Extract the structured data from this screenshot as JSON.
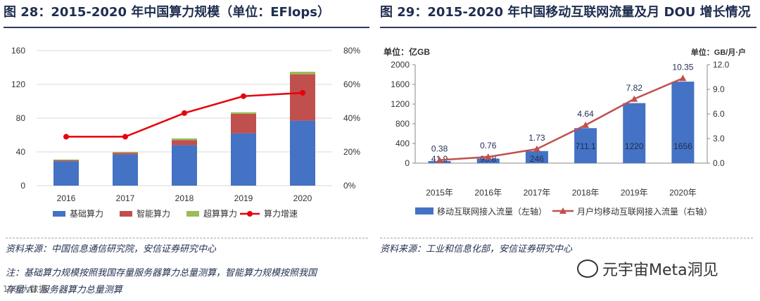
{
  "left_chart": {
    "title": "图 28：2015-2020 年中国算力规模（单位：EFlops）",
    "source": "资料来源：中国信息通信研究院，安信证券研究中心",
    "note_line1": "注：基础算力规模按照我国存量服务器算力总量测算，智能算力规模按照我国",
    "note_line2": "存量 AI 服务器算力总量测算"
  },
  "right_chart": {
    "title": "图 29：2015-2020 年中国移动互联网流量及月 DOU 增长情况",
    "source": "资料来源：工业和信息化部，安信证券研究中心",
    "unit_left": "单位：亿GB",
    "unit_right": "单位：GB/月·户"
  },
  "watermark": {
    "text": "元宇宙Meta洞见",
    "logo_text": "199 大数据"
  },
  "colors": {
    "blue": "#4472c4",
    "red": "#c0504d",
    "green": "#9bbb59",
    "line": "#e8000b",
    "dou": "#c0504d"
  },
  "chart_data": [
    {
      "type": "bar",
      "stacked": true,
      "title": "2015-2020 年中国算力规模（单位：EFlops）",
      "categories": [
        "2016",
        "2017",
        "2018",
        "2019",
        "2020"
      ],
      "series": [
        {
          "name": "基础算力",
          "axis": "left",
          "values": [
            29,
            37,
            48,
            62,
            77
          ]
        },
        {
          "name": "智能算力",
          "axis": "left",
          "values": [
            1,
            2,
            6,
            23,
            55
          ]
        },
        {
          "name": "超算算力",
          "axis": "left",
          "values": [
            1,
            1,
            2,
            2,
            3
          ]
        },
        {
          "name": "算力增速",
          "type": "line",
          "axis": "right",
          "values": [
            0.29,
            0.29,
            0.43,
            0.53,
            0.55
          ]
        }
      ],
      "yleft": {
        "min": 0,
        "max": 160,
        "ticks": [
          0,
          40,
          80,
          120,
          160
        ],
        "tick_labels": [
          "0",
          "40",
          "80",
          "120",
          "160"
        ]
      },
      "yright": {
        "min": 0,
        "max": 0.8,
        "ticks": [
          0,
          0.2,
          0.4,
          0.6,
          0.8
        ],
        "tick_labels": [
          "0%",
          "20%",
          "40%",
          "60%",
          "80%"
        ]
      },
      "legend_position": "bottom"
    },
    {
      "type": "bar",
      "title": "2015-2020 年中国移动互联网流量及月 DOU 增长情况",
      "categories": [
        "2015年",
        "2016年",
        "2017年",
        "2018年",
        "2019年",
        "2020年"
      ],
      "series": [
        {
          "name": "移动互联网接入流量（左轴）",
          "axis": "left",
          "values": [
            41.9,
            93.8,
            246,
            711.1,
            1220,
            1656
          ],
          "labels": [
            "41.9",
            "93.8",
            "246",
            "711.1",
            "1220",
            "1656"
          ]
        },
        {
          "name": "月户均移动互联网接入流量（右轴）",
          "type": "line",
          "axis": "right",
          "values": [
            0.38,
            0.76,
            1.73,
            4.64,
            7.82,
            10.35
          ],
          "labels": [
            "0.38",
            "0.76",
            "1.73",
            "4.64",
            "7.82",
            "10.35"
          ]
        }
      ],
      "yleft": {
        "min": 0,
        "max": 2000,
        "ticks": [
          0,
          400,
          800,
          1200,
          1600,
          2000
        ],
        "tick_labels": [
          "0",
          "400",
          "800",
          "1200",
          "1600",
          "2000"
        ]
      },
      "yright": {
        "min": 0,
        "max": 12,
        "ticks": [
          0,
          3,
          6,
          9,
          12
        ],
        "tick_labels": [
          "0.0",
          "3.0",
          "6.0",
          "9.0",
          "12.0"
        ]
      },
      "legend_position": "bottom"
    }
  ]
}
